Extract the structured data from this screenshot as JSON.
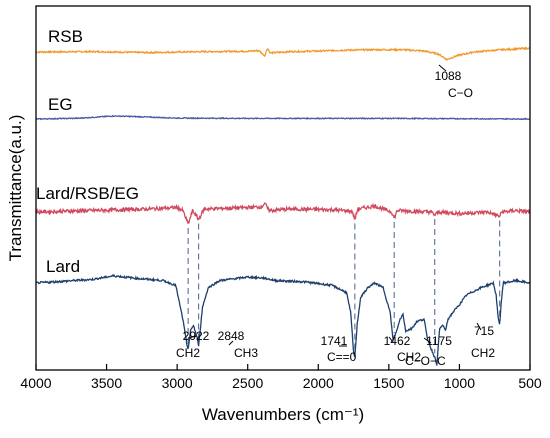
{
  "chart_data": {
    "type": "line",
    "xlabel": "Wavenumbers (cm⁻¹)",
    "ylabel": "Transmittance(a.u.)",
    "xlim": [
      4000,
      500
    ],
    "x_ticks": [
      "4000",
      "3500",
      "3000",
      "2500",
      "2000",
      "1500",
      "1000",
      "500"
    ],
    "x_tick_values": [
      4000,
      3500,
      3000,
      2500,
      2000,
      1500,
      1000,
      500
    ],
    "x_reversed": true,
    "y_ticks_shown": false,
    "grid": false,
    "legend": "none",
    "series": [
      {
        "name": "RSB",
        "color": "#f29a2e",
        "noise": 0.4,
        "points": [
          [
            4000,
            0
          ],
          [
            3600,
            0.2
          ],
          [
            3200,
            -0.3
          ],
          [
            2800,
            0.2
          ],
          [
            2500,
            0.4
          ],
          [
            2420,
            0.7
          ],
          [
            2380,
            -2
          ],
          [
            2360,
            2
          ],
          [
            2340,
            -0.5
          ],
          [
            2200,
            0.2
          ],
          [
            2000,
            0.5
          ],
          [
            1800,
            1
          ],
          [
            1600,
            1.2
          ],
          [
            1400,
            1.2
          ],
          [
            1250,
            0.5
          ],
          [
            1150,
            -1
          ],
          [
            1088,
            -4
          ],
          [
            1020,
            -2
          ],
          [
            900,
            0
          ],
          [
            700,
            1.2
          ],
          [
            500,
            2
          ]
        ]
      },
      {
        "name": "EG",
        "color": "#4a5aa6",
        "noise": 0.3,
        "points": [
          [
            4000,
            0
          ],
          [
            3700,
            0.5
          ],
          [
            3450,
            2
          ],
          [
            3300,
            1.6
          ],
          [
            3000,
            0.6
          ],
          [
            2500,
            0.4
          ],
          [
            2000,
            0.4
          ],
          [
            1500,
            0.4
          ],
          [
            1000,
            0.2
          ],
          [
            500,
            0
          ]
        ]
      },
      {
        "name": "Lard/RSB/EG",
        "color": "#d04a5e",
        "noise": 1.2,
        "points": [
          [
            4000,
            0
          ],
          [
            3600,
            1
          ],
          [
            3200,
            2
          ],
          [
            3000,
            3
          ],
          [
            2960,
            1
          ],
          [
            2922,
            -8
          ],
          [
            2890,
            1
          ],
          [
            2848,
            -5
          ],
          [
            2810,
            2
          ],
          [
            2500,
            3
          ],
          [
            2400,
            3.5
          ],
          [
            2380,
            6
          ],
          [
            2350,
            1
          ],
          [
            2200,
            2
          ],
          [
            1900,
            1.5
          ],
          [
            1760,
            0.5
          ],
          [
            1741,
            -5
          ],
          [
            1720,
            2
          ],
          [
            1600,
            4
          ],
          [
            1480,
            0
          ],
          [
            1462,
            -4
          ],
          [
            1440,
            1
          ],
          [
            1200,
            0
          ],
          [
            1175,
            -2
          ],
          [
            1150,
            0
          ],
          [
            1000,
            -1
          ],
          [
            800,
            0
          ],
          [
            715,
            -3
          ],
          [
            700,
            0
          ],
          [
            600,
            1
          ],
          [
            500,
            0
          ]
        ]
      },
      {
        "name": "Lard",
        "color": "#1e3f6e",
        "noise": 0.8,
        "points": [
          [
            4000,
            0
          ],
          [
            3800,
            1.5
          ],
          [
            3600,
            3
          ],
          [
            3450,
            6
          ],
          [
            3300,
            4
          ],
          [
            3100,
            2
          ],
          [
            3010,
            -2
          ],
          [
            2960,
            -30
          ],
          [
            2930,
            -52
          ],
          [
            2922,
            -55
          ],
          [
            2905,
            -40
          ],
          [
            2885,
            -35
          ],
          [
            2860,
            -45
          ],
          [
            2848,
            -52
          ],
          [
            2820,
            -20
          ],
          [
            2780,
            -4
          ],
          [
            2700,
            2
          ],
          [
            2500,
            5
          ],
          [
            2380,
            4
          ],
          [
            2300,
            2
          ],
          [
            2100,
            1
          ],
          [
            1900,
            -2
          ],
          [
            1800,
            -8
          ],
          [
            1770,
            -25
          ],
          [
            1750,
            -58
          ],
          [
            1741,
            -62
          ],
          [
            1725,
            -35
          ],
          [
            1700,
            -12
          ],
          [
            1650,
            -4
          ],
          [
            1600,
            0
          ],
          [
            1540,
            -4
          ],
          [
            1490,
            -25
          ],
          [
            1470,
            -48
          ],
          [
            1462,
            -45
          ],
          [
            1445,
            -40
          ],
          [
            1420,
            -30
          ],
          [
            1400,
            -26
          ],
          [
            1380,
            -40
          ],
          [
            1340,
            -38
          ],
          [
            1300,
            -32
          ],
          [
            1250,
            -30
          ],
          [
            1230,
            -45
          ],
          [
            1200,
            -55
          ],
          [
            1175,
            -62
          ],
          [
            1160,
            -68
          ],
          [
            1140,
            -38
          ],
          [
            1115,
            -35
          ],
          [
            1100,
            -40
          ],
          [
            1080,
            -30
          ],
          [
            1050,
            -25
          ],
          [
            1000,
            -18
          ],
          [
            950,
            -10
          ],
          [
            850,
            -4
          ],
          [
            760,
            0
          ],
          [
            740,
            -10
          ],
          [
            725,
            -30
          ],
          [
            715,
            -35
          ],
          [
            705,
            -18
          ],
          [
            690,
            0
          ],
          [
            600,
            2
          ],
          [
            500,
            0
          ]
        ]
      }
    ],
    "annotations": [
      {
        "wavenumber": "2922",
        "group": "CH2"
      },
      {
        "wavenumber": "2848",
        "group": "CH3"
      },
      {
        "wavenumber": "1741",
        "group": "C==0"
      },
      {
        "wavenumber": "1462",
        "group": "CH2"
      },
      {
        "wavenumber": "1175",
        "group": "C−O−C"
      },
      {
        "wavenumber": "715",
        "group": "CH2"
      },
      {
        "wavenumber": "1088",
        "group": "C−O"
      }
    ],
    "dashed_guides_at": [
      2922,
      2848,
      1741,
      1462,
      1175,
      715
    ]
  }
}
